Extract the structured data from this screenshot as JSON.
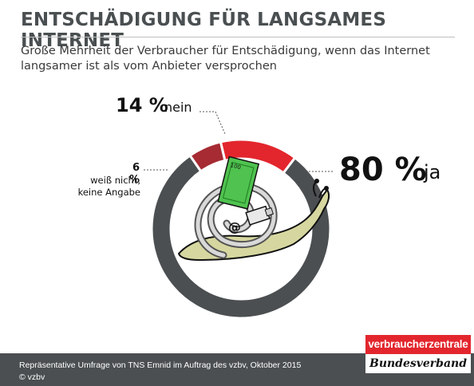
{
  "title": "ENTSCHÄDIGUNG FÜR LANGSAMES INTERNET",
  "subtitle": "Große Mehrheit der Verbraucher für Entschädigung, wenn das Internet langsamer ist als vom Anbieter versprochen",
  "chart_data": {
    "type": "pie",
    "variant": "donut",
    "labels": [
      "ja",
      "nein",
      "weiß nicht, keine Angabe"
    ],
    "values": [
      80,
      14,
      6
    ],
    "value_labels": [
      "80 %",
      "14 %",
      "6 %"
    ],
    "colors": [
      "#4b4f51",
      "#e3262d",
      "#a62b33"
    ],
    "start": "top, clockwise"
  },
  "labels": {
    "yes_pct": "80 %",
    "yes_word": "ja",
    "no_pct": "14 %",
    "no_word": "nein",
    "dk_pct": "6 %",
    "dk_text_line1": "weiß nicht,",
    "dk_text_line2": "keine Angabe"
  },
  "illustration": {
    "banknote_value": "100",
    "at_sign": "@"
  },
  "footer": {
    "source": "Repräsentative Umfrage von TNS Emnid im Auftrag des vzbv, Oktober 2015",
    "copyright": "© vzbv"
  },
  "logo": {
    "top": "verbraucherzentrale",
    "bottom": "Bundesverband"
  }
}
